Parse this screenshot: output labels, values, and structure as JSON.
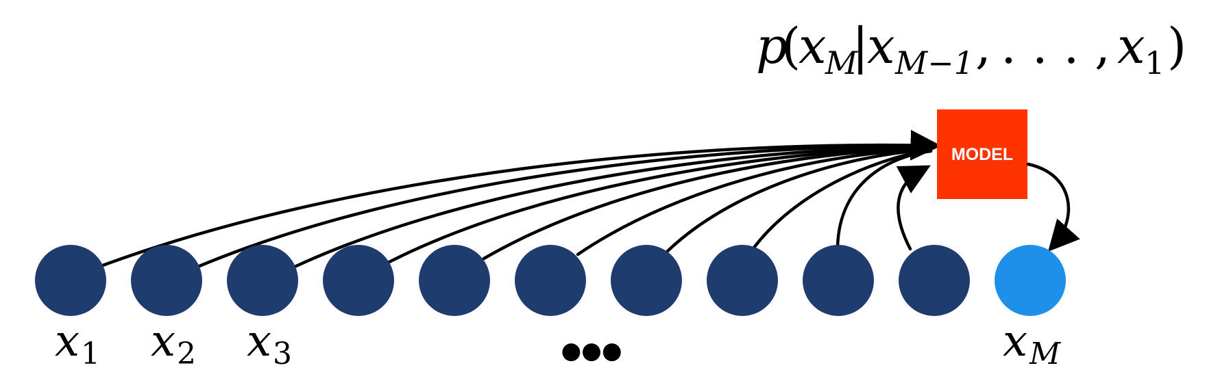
{
  "formula": {
    "p": "p",
    "open_paren": "(",
    "x1": "x",
    "sub1": "M",
    "bar": "|",
    "x2": "x",
    "sub2": "M−1",
    "comma1": ",",
    "dots": ". . .",
    "comma2": ",",
    "x3": "x",
    "sub3": "1",
    "close_paren": ")"
  },
  "model": {
    "label": "MODEL",
    "color": "#ff3300"
  },
  "nodes": {
    "count": 11,
    "context_color": "#1f3c6e",
    "target_color": "#1e90ea"
  },
  "labels": {
    "x1": {
      "var": "x",
      "sub": "1"
    },
    "x2": {
      "var": "x",
      "sub": "2"
    },
    "x3": {
      "var": "x",
      "sub": "3"
    },
    "ellipsis": "●●●",
    "xM": {
      "var": "x",
      "sub": "M"
    }
  },
  "arrow_color": "#000000"
}
